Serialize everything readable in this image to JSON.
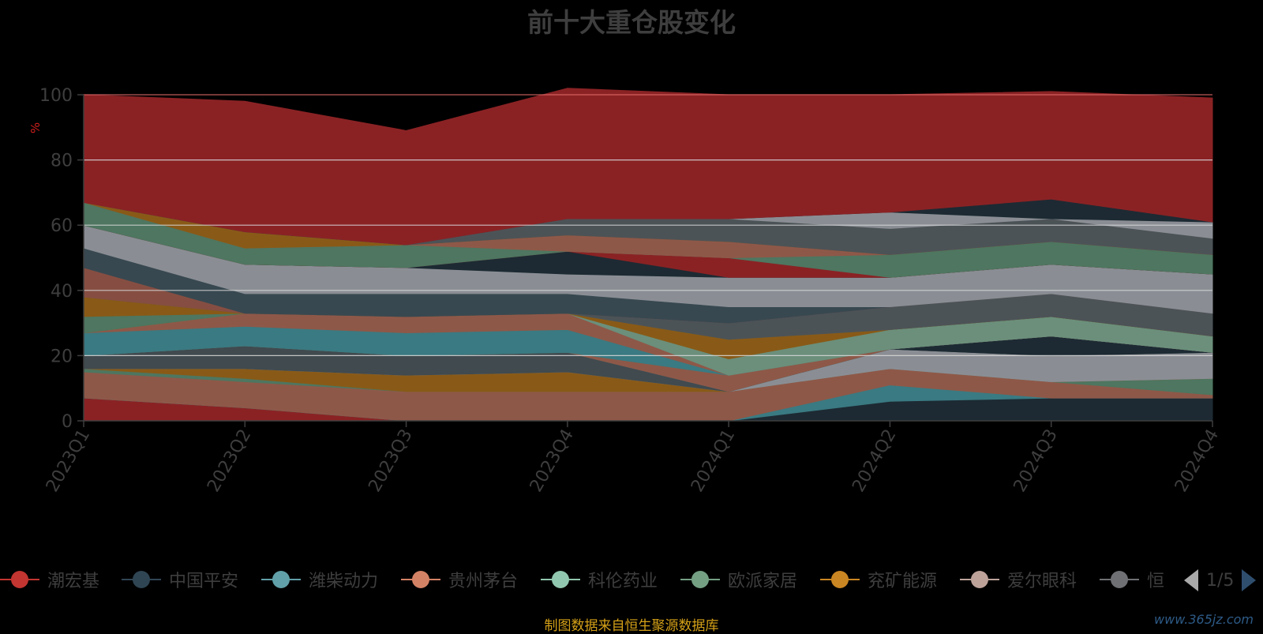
{
  "title": "前十大重仓股变化",
  "source_note": "制图数据来自恒生聚源数据库",
  "watermark": "www.365jz.com",
  "legend": {
    "page": "1/5",
    "items": [
      {
        "label": "潮宏基",
        "color": "#c23531"
      },
      {
        "label": "中国平安",
        "color": "#2f4554"
      },
      {
        "label": "潍柴动力",
        "color": "#61a0a8"
      },
      {
        "label": "贵州茅台",
        "color": "#d48265"
      },
      {
        "label": "科伦药业",
        "color": "#91c7ae"
      },
      {
        "label": "欧派家居",
        "color": "#749f83"
      },
      {
        "label": "兖矿能源",
        "color": "#ca8622"
      },
      {
        "label": "爱尔眼科",
        "color": "#bda29a"
      },
      {
        "label": "恒",
        "color": "#6e7074"
      }
    ]
  },
  "chart_data": {
    "type": "area",
    "stacked": true,
    "title": "前十大重仓股变化",
    "ylabel": "%",
    "ylim": [
      0,
      100
    ],
    "yticks": [
      "0",
      "20",
      "40",
      "60",
      "80",
      "100"
    ],
    "categories": [
      "2023Q1",
      "2023Q2",
      "2023Q3",
      "2023Q4",
      "2024Q1",
      "2024Q2",
      "2024Q3",
      "2024Q4"
    ],
    "grid": true,
    "legend_position": "bottom",
    "layers": [
      {
        "color": "#8a2224",
        "values": [
          7,
          4,
          0,
          0,
          0,
          0,
          0,
          0
        ]
      },
      {
        "color": "#1d2a33",
        "values": [
          0,
          0,
          0,
          0,
          0,
          6,
          7,
          7
        ]
      },
      {
        "color": "#3a7a82",
        "values": [
          0,
          0,
          0,
          0,
          0,
          5,
          0,
          0
        ]
      },
      {
        "color": "#8e5848",
        "values": [
          8,
          8,
          9,
          9,
          9,
          5,
          5,
          1
        ]
      },
      {
        "color": "#4e7660",
        "values": [
          1,
          1,
          0,
          0,
          0,
          0,
          0,
          5
        ]
      },
      {
        "color": "#895a17",
        "values": [
          0,
          3,
          5,
          6,
          0,
          0,
          0,
          0
        ]
      },
      {
        "color": "#864e42",
        "values": [
          0,
          0,
          0,
          0,
          0,
          0,
          0,
          0
        ]
      },
      {
        "color": "#8a8e94",
        "values": [
          0,
          0,
          0,
          0,
          0,
          6,
          8,
          8
        ]
      },
      {
        "color": "#404a4f",
        "values": [
          4,
          7,
          6,
          6,
          0,
          0,
          0,
          0
        ]
      },
      {
        "color": "#1d2a33",
        "values": [
          0,
          0,
          0,
          0,
          0,
          0,
          6,
          0
        ]
      },
      {
        "color": "#3a7a82",
        "values": [
          0,
          0,
          0,
          0,
          0,
          0,
          0,
          0
        ]
      },
      {
        "color": "#8e5848",
        "values": [
          0,
          0,
          0,
          0,
          5,
          0,
          0,
          0
        ]
      },
      {
        "color": "#4e7660",
        "values": [
          0,
          0,
          0,
          0,
          0,
          0,
          0,
          0
        ]
      },
      {
        "color": "#3a7a82",
        "values": [
          7,
          6,
          7,
          7,
          0,
          0,
          0,
          0
        ]
      },
      {
        "color": "#8e5848",
        "values": [
          0,
          4,
          5,
          5,
          0,
          0,
          0,
          0
        ]
      },
      {
        "color": "#6b8f7b",
        "values": [
          0,
          0,
          0,
          0,
          5,
          6,
          6,
          5
        ]
      },
      {
        "color": "#895a17",
        "values": [
          0,
          0,
          0,
          0,
          6,
          0,
          0,
          0
        ]
      },
      {
        "color": "#4e7660",
        "values": [
          5,
          0,
          0,
          0,
          0,
          0,
          0,
          0
        ]
      },
      {
        "color": "#895a17",
        "values": [
          6,
          0,
          0,
          0,
          0,
          0,
          0,
          0
        ]
      },
      {
        "color": "#4c5357",
        "values": [
          0,
          0,
          0,
          0,
          5,
          7,
          7,
          7
        ]
      },
      {
        "color": "#864e42",
        "values": [
          9,
          0,
          0,
          0,
          0,
          0,
          0,
          0
        ]
      },
      {
        "color": "#384850",
        "values": [
          6,
          6,
          7,
          6,
          5,
          0,
          0,
          0
        ]
      },
      {
        "color": "#8a8e94",
        "values": [
          7,
          9,
          8,
          6,
          9,
          9,
          9,
          12
        ]
      },
      {
        "color": "#1d2a33",
        "values": [
          0,
          0,
          0,
          7,
          0,
          0,
          0,
          0
        ]
      },
      {
        "color": "#8a2224",
        "values": [
          0,
          0,
          0,
          0,
          6,
          0,
          0,
          0
        ]
      },
      {
        "color": "#4e7660",
        "values": [
          7,
          5,
          7,
          0,
          0,
          7,
          7,
          6
        ]
      },
      {
        "color": "#8e5848",
        "values": [
          0,
          0,
          0,
          5,
          5,
          0,
          0,
          0
        ]
      },
      {
        "color": "#895a17",
        "values": [
          0,
          5,
          0,
          0,
          0,
          0,
          0,
          0
        ]
      },
      {
        "color": "#4c5357",
        "values": [
          0,
          0,
          0,
          5,
          7,
          8,
          7,
          5
        ]
      },
      {
        "color": "#8a8e94",
        "values": [
          0,
          0,
          0,
          0,
          0,
          5,
          0,
          5
        ]
      },
      {
        "color": "#1d2a33",
        "values": [
          0,
          0,
          0,
          0,
          0,
          0,
          6,
          0
        ]
      },
      {
        "color": "#8a2224",
        "values": [
          33,
          40,
          35,
          40,
          38,
          36,
          33,
          38
        ]
      }
    ]
  }
}
